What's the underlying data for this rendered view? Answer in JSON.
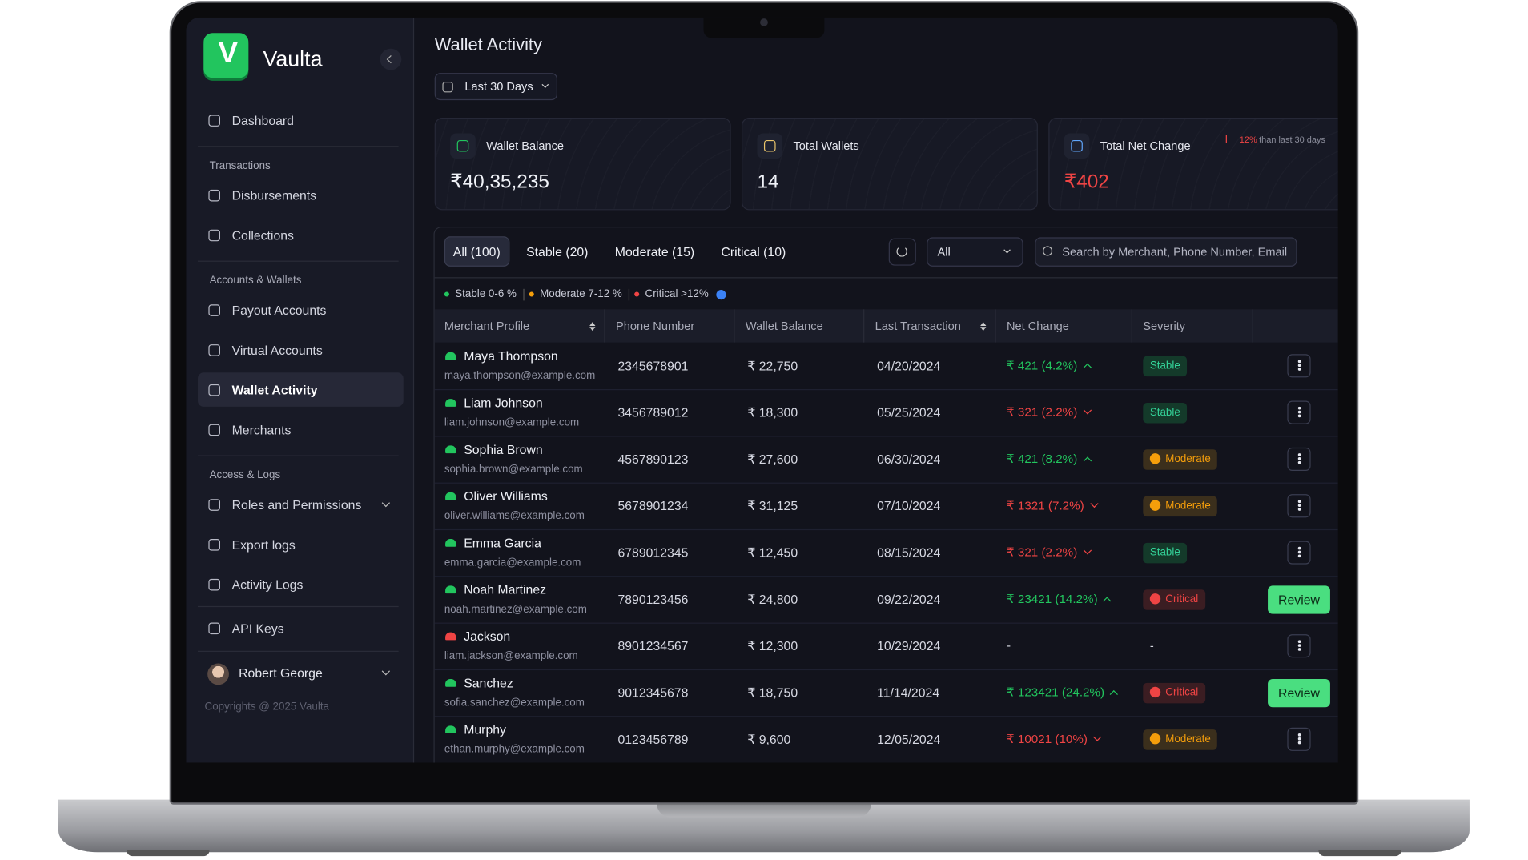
{
  "brand": {
    "logo": "V",
    "name": "Vaulta"
  },
  "sidebar": {
    "top": [
      {
        "label": "Dashboard"
      }
    ],
    "sections": [
      {
        "title": "Transactions",
        "items": [
          {
            "label": "Disbursements"
          },
          {
            "label": "Collections"
          }
        ]
      },
      {
        "title": "Accounts & Wallets",
        "items": [
          {
            "label": "Payout Accounts"
          },
          {
            "label": "Virtual Accounts"
          },
          {
            "label": "Wallet Activity",
            "active": true
          },
          {
            "label": "Merchants"
          }
        ]
      },
      {
        "title": "Access & Logs",
        "items": [
          {
            "label": "Roles and Permissions",
            "menu": true
          },
          {
            "label": "Export logs"
          },
          {
            "label": "Activity Logs"
          }
        ]
      }
    ],
    "bottom": [
      {
        "label": "API Keys"
      }
    ],
    "user": "Robert George",
    "copyright": "Copyrights @ 2025 Vaulta"
  },
  "header": {
    "title": "Wallet Activity",
    "date_filter": "Last 30 Days"
  },
  "stats": [
    {
      "label": "Wallet Balance",
      "value": "₹40,35,235"
    },
    {
      "label": "Total Wallets",
      "value": "14"
    },
    {
      "label": "Total Net Change",
      "value": "₹402",
      "tone": "red",
      "delta": "12%",
      "delta_note": "than last 30 days"
    }
  ],
  "tabs": [
    {
      "label": "All (100)",
      "active": true
    },
    {
      "label": "Stable (20)"
    },
    {
      "label": "Moderate (15)"
    },
    {
      "label": "Critical (10)"
    }
  ],
  "filter": "All",
  "search_placeholder": "Search by Merchant, Phone Number, Email",
  "legend": [
    {
      "label": "Stable 0-6 %",
      "tone": "green"
    },
    {
      "label": "Moderate 7-12 %",
      "tone": "amber"
    },
    {
      "label": "Critical >12%",
      "tone": "red"
    }
  ],
  "table": {
    "columns": [
      {
        "label": "Merchant Profile",
        "sort": true
      },
      {
        "label": "Phone Number"
      },
      {
        "label": "Wallet Balance"
      },
      {
        "label": "Last Transaction",
        "sort": true
      },
      {
        "label": "Net Change"
      },
      {
        "label": "Severity"
      }
    ],
    "rows": [
      {
        "name": "Maya Thompson",
        "email": "maya.thompson@example.com",
        "phone": "2345678901",
        "balance": "₹ 22,750",
        "last": "04/20/2024",
        "change": "₹ 421 (4.2%)",
        "trend": "up",
        "severity": "Stable",
        "tone": "green"
      },
      {
        "name": "Liam Johnson",
        "email": "liam.johnson@example.com",
        "phone": "3456789012",
        "balance": "₹ 18,300",
        "last": "05/25/2024",
        "change": "₹ 321 (2.2%)",
        "trend": "down",
        "severity": "Stable",
        "tone": "green"
      },
      {
        "name": "Sophia Brown",
        "email": "sophia.brown@example.com",
        "phone": "4567890123",
        "balance": "₹ 27,600",
        "last": "06/30/2024",
        "change": "₹ 421 (8.2%)",
        "trend": "up",
        "severity": "Moderate",
        "tone": "amber"
      },
      {
        "name": "Oliver Williams",
        "email": "oliver.williams@example.com",
        "phone": "5678901234",
        "balance": "₹ 31,125",
        "last": "07/10/2024",
        "change": "₹ 1321 (7.2%)",
        "trend": "down",
        "severity": "Moderate",
        "tone": "amber"
      },
      {
        "name": "Emma Garcia",
        "email": "emma.garcia@example.com",
        "phone": "6789012345",
        "balance": "₹ 12,450",
        "last": "08/15/2024",
        "change": "₹ 321 (2.2%)",
        "trend": "down",
        "severity": "Stable",
        "tone": "green"
      },
      {
        "name": "Noah Martinez",
        "email": "noah.martinez@example.com",
        "phone": "7890123456",
        "balance": "₹ 24,800",
        "last": "09/22/2024",
        "change": "₹ 23421 (14.2%)",
        "trend": "up",
        "severity": "Critical",
        "tone": "red",
        "action": "Review"
      },
      {
        "name": "Jackson",
        "email": "liam.jackson@example.com",
        "phone": "8901234567",
        "balance": "₹ 12,300",
        "last": "10/29/2024",
        "change": "-",
        "severity": "-",
        "inactive": true
      },
      {
        "name": "Sanchez",
        "email": "sofia.sanchez@example.com",
        "phone": "9012345678",
        "balance": "₹ 18,750",
        "last": "11/14/2024",
        "change": "₹ 123421 (24.2%)",
        "trend": "up",
        "severity": "Critical",
        "tone": "red",
        "action": "Review"
      },
      {
        "name": "Murphy",
        "email": "ethan.murphy@example.com",
        "phone": "0123456789",
        "balance": "₹ 9,600",
        "last": "12/05/2024",
        "change": "₹ 10021 (10%)",
        "trend": "down",
        "severity": "Moderate",
        "tone": "amber"
      }
    ]
  }
}
